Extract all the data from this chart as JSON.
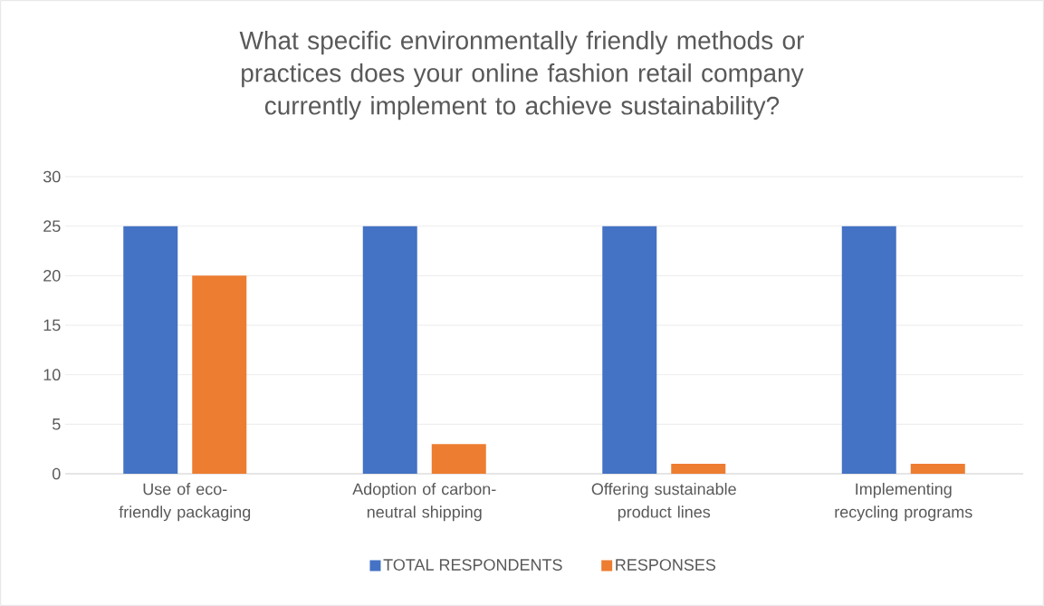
{
  "chart_data": {
    "type": "bar",
    "title": "What specific environmentally friendly methods or practices does your online fashion retail company currently implement to achieve sustainability?",
    "categories": [
      "Use of eco-friendly packaging",
      "Adoption of carbon-neutral shipping",
      "Offering sustainable product lines",
      "Implementing recycling programs"
    ],
    "series": [
      {
        "name": "TOTAL RESPONDENTS",
        "color": "#4472c4",
        "values": [
          25,
          25,
          25,
          25
        ]
      },
      {
        "name": "RESPONSES",
        "color": "#ed7d31",
        "values": [
          20,
          3,
          1,
          1
        ]
      }
    ],
    "ylim": [
      0,
      30
    ],
    "yticks": [
      0,
      5,
      10,
      15,
      20,
      25,
      30
    ],
    "grid": "y",
    "legend": "bottom"
  }
}
